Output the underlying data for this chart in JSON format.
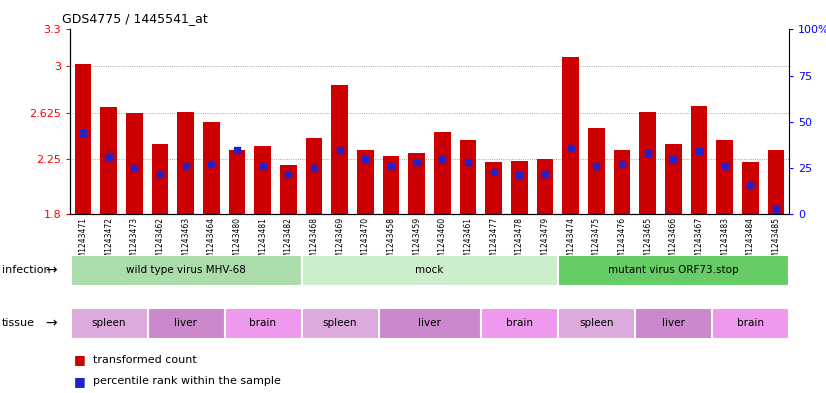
{
  "title": "GDS4775 / 1445541_at",
  "samples": [
    "GSM1243471",
    "GSM1243472",
    "GSM1243473",
    "GSM1243462",
    "GSM1243463",
    "GSM1243464",
    "GSM1243480",
    "GSM1243481",
    "GSM1243482",
    "GSM1243468",
    "GSM1243469",
    "GSM1243470",
    "GSM1243458",
    "GSM1243459",
    "GSM1243460",
    "GSM1243461",
    "GSM1243477",
    "GSM1243478",
    "GSM1243479",
    "GSM1243474",
    "GSM1243475",
    "GSM1243476",
    "GSM1243465",
    "GSM1243466",
    "GSM1243467",
    "GSM1243483",
    "GSM1243484",
    "GSM1243485"
  ],
  "transformed_count": [
    3.02,
    2.67,
    2.62,
    2.37,
    2.63,
    2.55,
    2.32,
    2.35,
    2.2,
    2.42,
    2.85,
    2.32,
    2.27,
    2.3,
    2.47,
    2.4,
    2.22,
    2.23,
    2.25,
    3.08,
    2.5,
    2.32,
    2.63,
    2.37,
    2.68,
    2.4,
    2.22,
    2.32
  ],
  "percentile_rank": [
    44,
    31,
    25,
    22,
    26,
    27,
    35,
    26,
    22,
    25,
    35,
    30,
    26,
    28,
    30,
    28,
    23,
    21,
    22,
    36,
    26,
    27,
    33,
    30,
    34,
    26,
    16,
    3
  ],
  "ymin": 1.8,
  "ymax": 3.3,
  "yticks": [
    1.8,
    2.25,
    2.625,
    3.0,
    3.3
  ],
  "ytick_labels": [
    "1.8",
    "2.25",
    "2.625",
    "3",
    "3.3"
  ],
  "right_yticks": [
    0,
    25,
    50,
    75,
    100
  ],
  "right_ytick_labels": [
    "0",
    "25",
    "50",
    "75",
    "100%"
  ],
  "bar_color": "#cc0000",
  "dot_color": "#2222cc",
  "infection_groups": [
    {
      "label": "wild type virus MHV-68",
      "start": 0,
      "end": 9,
      "color": "#aaddaa"
    },
    {
      "label": "mock",
      "start": 9,
      "end": 19,
      "color": "#cceecc"
    },
    {
      "label": "mutant virus ORF73.stop",
      "start": 19,
      "end": 28,
      "color": "#66cc66"
    }
  ],
  "tissue_groups": [
    {
      "label": "spleen",
      "start": 0,
      "end": 3,
      "color": "#ddaadd"
    },
    {
      "label": "liver",
      "start": 3,
      "end": 6,
      "color": "#cc88cc"
    },
    {
      "label": "brain",
      "start": 6,
      "end": 9,
      "color": "#ee99ee"
    },
    {
      "label": "spleen",
      "start": 9,
      "end": 12,
      "color": "#ddaadd"
    },
    {
      "label": "liver",
      "start": 12,
      "end": 16,
      "color": "#cc88cc"
    },
    {
      "label": "brain",
      "start": 16,
      "end": 19,
      "color": "#ee99ee"
    },
    {
      "label": "spleen",
      "start": 19,
      "end": 22,
      "color": "#ddaadd"
    },
    {
      "label": "liver",
      "start": 22,
      "end": 25,
      "color": "#cc88cc"
    },
    {
      "label": "brain",
      "start": 25,
      "end": 28,
      "color": "#ee99ee"
    }
  ],
  "bg_color": "#ffffff",
  "grid_color": "#888888",
  "infection_label": "infection",
  "tissue_label": "tissue"
}
